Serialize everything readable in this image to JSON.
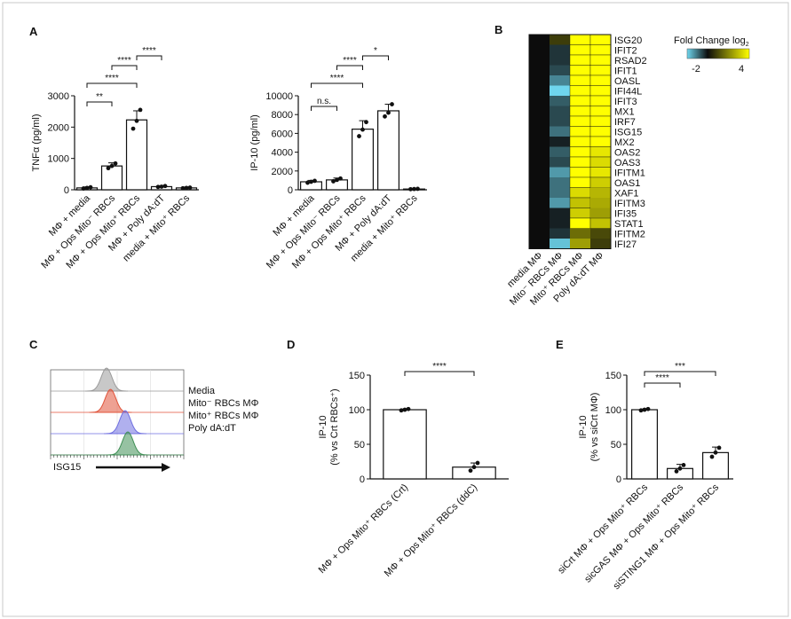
{
  "panel_labels": [
    "A",
    "B",
    "C",
    "D",
    "E"
  ],
  "chart_data": [
    {
      "panel": "A",
      "type": "bar",
      "ylabel": "TNFα (pg/ml)",
      "ylim": [
        0,
        3000
      ],
      "yticks": [
        0,
        1000,
        2000,
        3000
      ],
      "categories": [
        "MΦ + media",
        "MΦ + Ops Mito⁻ RBCs",
        "MΦ + Ops Mito⁺ RBCs",
        "MΦ + Poly dA:dT",
        "media + Mito⁺ RBCs"
      ],
      "values": [
        60,
        760,
        2230,
        100,
        60
      ],
      "errors": [
        30,
        100,
        290,
        30,
        20
      ],
      "points": [
        [
          40,
          60,
          80
        ],
        [
          690,
          760,
          840
        ],
        [
          1950,
          2200,
          2550
        ],
        [
          90,
          100,
          120
        ],
        [
          50,
          60,
          70
        ]
      ],
      "significance": [
        {
          "from": 0,
          "to": 1,
          "label": "**"
        },
        {
          "from": 0,
          "to": 2,
          "label": "****"
        },
        {
          "from": 1,
          "to": 2,
          "label": "****"
        },
        {
          "from": 2,
          "to": 3,
          "label": "****"
        }
      ]
    },
    {
      "panel": "A2",
      "type": "bar",
      "ylabel": "IP-10 (pg/ml)",
      "ylim": [
        0,
        10000
      ],
      "yticks": [
        0,
        2000,
        4000,
        6000,
        8000,
        10000
      ],
      "categories": [
        "MΦ + media",
        "MΦ + Ops Mito⁻ RBCs",
        "MΦ + Ops Mito⁺ RBCs",
        "MΦ + Poly dA:dT",
        "media + Mito⁺ RBCs"
      ],
      "values": [
        850,
        1050,
        6450,
        8400,
        80
      ],
      "errors": [
        150,
        200,
        900,
        700,
        30
      ],
      "points": [
        [
          750,
          850,
          950
        ],
        [
          900,
          1050,
          1200
        ],
        [
          5700,
          6400,
          7200
        ],
        [
          7800,
          8200,
          9100
        ],
        [
          60,
          80,
          100
        ]
      ],
      "significance": [
        {
          "from": 0,
          "to": 1,
          "label": "n.s."
        },
        {
          "from": 0,
          "to": 2,
          "label": "****"
        },
        {
          "from": 1,
          "to": 2,
          "label": "****"
        },
        {
          "from": 2,
          "to": 3,
          "label": "*"
        }
      ]
    },
    {
      "panel": "B",
      "type": "heatmap",
      "legend_title": "Fold Change log",
      "legend_title_sub": "2",
      "scale_min": -2,
      "scale_max": 4,
      "scale_labels": [
        "-2",
        "4"
      ],
      "columns": [
        "media MΦ",
        "Mito⁻ RBCs MΦ",
        "Mito⁺ RBCs MΦ",
        "Poly dA:dT MΦ"
      ],
      "rows": [
        "ISG20",
        "IFIT2",
        "RSAD2",
        "IFIT1",
        "OASL",
        "IFI44L",
        "IFIT3",
        "MX1",
        "IRF7",
        "ISG15",
        "MX2",
        "OAS2",
        "OAS3",
        "IFITM1",
        "OAS1",
        "XAF1",
        "IFITM3",
        "IFI35",
        "STAT1",
        "IFITM2",
        "IFI27"
      ],
      "values": [
        [
          0,
          0.8,
          4,
          4
        ],
        [
          0,
          -0.4,
          4,
          4
        ],
        [
          0,
          -0.4,
          4,
          4
        ],
        [
          0,
          -0.6,
          4,
          4
        ],
        [
          0,
          -1.2,
          4,
          4
        ],
        [
          0,
          -2,
          4,
          4
        ],
        [
          0,
          -0.8,
          4,
          4
        ],
        [
          0,
          -0.6,
          4,
          4
        ],
        [
          0,
          -0.6,
          4,
          4
        ],
        [
          0,
          -1.0,
          4,
          4
        ],
        [
          0,
          -0.2,
          4,
          4
        ],
        [
          0,
          -0.8,
          4,
          3.6
        ],
        [
          0,
          -0.6,
          4,
          3.4
        ],
        [
          0,
          -1.4,
          4,
          3.6
        ],
        [
          0,
          -1.0,
          4,
          3.2
        ],
        [
          0,
          -1.0,
          3.4,
          2.8
        ],
        [
          0,
          -1.4,
          3.0,
          2.6
        ],
        [
          0,
          -0.2,
          3.2,
          2.4
        ],
        [
          0,
          -0.2,
          4,
          3.0
        ],
        [
          0,
          -0.4,
          1.6,
          1.0
        ],
        [
          0,
          -1.8,
          2.4,
          0.8
        ]
      ]
    },
    {
      "panel": "C",
      "type": "histogram",
      "xlabel": "ISG15",
      "series": [
        {
          "name": "Media",
          "color": "#9a9a9a",
          "peak": 0.42
        },
        {
          "name": "Mito⁻ RBCs MΦ",
          "color": "#e0533a",
          "peak": 0.45
        },
        {
          "name": "Mito⁺ RBCs MΦ",
          "color": "#6f6fe0",
          "peak": 0.56
        },
        {
          "name": "Poly dA:dT",
          "color": "#3f8f55",
          "peak": 0.58
        }
      ]
    },
    {
      "panel": "D",
      "type": "bar",
      "ylabel_lines": [
        "IP-10",
        "(% vs Crt RBCs⁺)"
      ],
      "ylim": [
        0,
        150
      ],
      "yticks": [
        0,
        50,
        100,
        150
      ],
      "categories": [
        "MΦ + Ops Mito⁺ RBCs (Crt)",
        "MΦ + Ops Mito⁺ RBCs (ddC)"
      ],
      "values": [
        100,
        17
      ],
      "errors": [
        1,
        6
      ],
      "points": [
        [
          99,
          100,
          101
        ],
        [
          12,
          17,
          23
        ]
      ],
      "significance": [
        {
          "from": 0,
          "to": 1,
          "label": "****"
        }
      ]
    },
    {
      "panel": "E",
      "type": "bar",
      "ylabel_lines": [
        "IP-10",
        "(% vs siCrt MΦ)"
      ],
      "ylim": [
        0,
        150
      ],
      "yticks": [
        0,
        50,
        100,
        150
      ],
      "categories": [
        "siCrt MΦ + Ops Mito⁺ RBCs",
        "sicGAS MΦ + Ops Mito⁺ RBCs",
        "siSTING1 MΦ + Ops Mito⁺ RBCs"
      ],
      "values": [
        100,
        15,
        38
      ],
      "errors": [
        1,
        6,
        8
      ],
      "points": [
        [
          99,
          100,
          101
        ],
        [
          11,
          15,
          20
        ],
        [
          32,
          38,
          45
        ]
      ],
      "significance": [
        {
          "from": 0,
          "to": 1,
          "label": "****"
        },
        {
          "from": 0,
          "to": 2,
          "label": "***"
        }
      ]
    }
  ]
}
